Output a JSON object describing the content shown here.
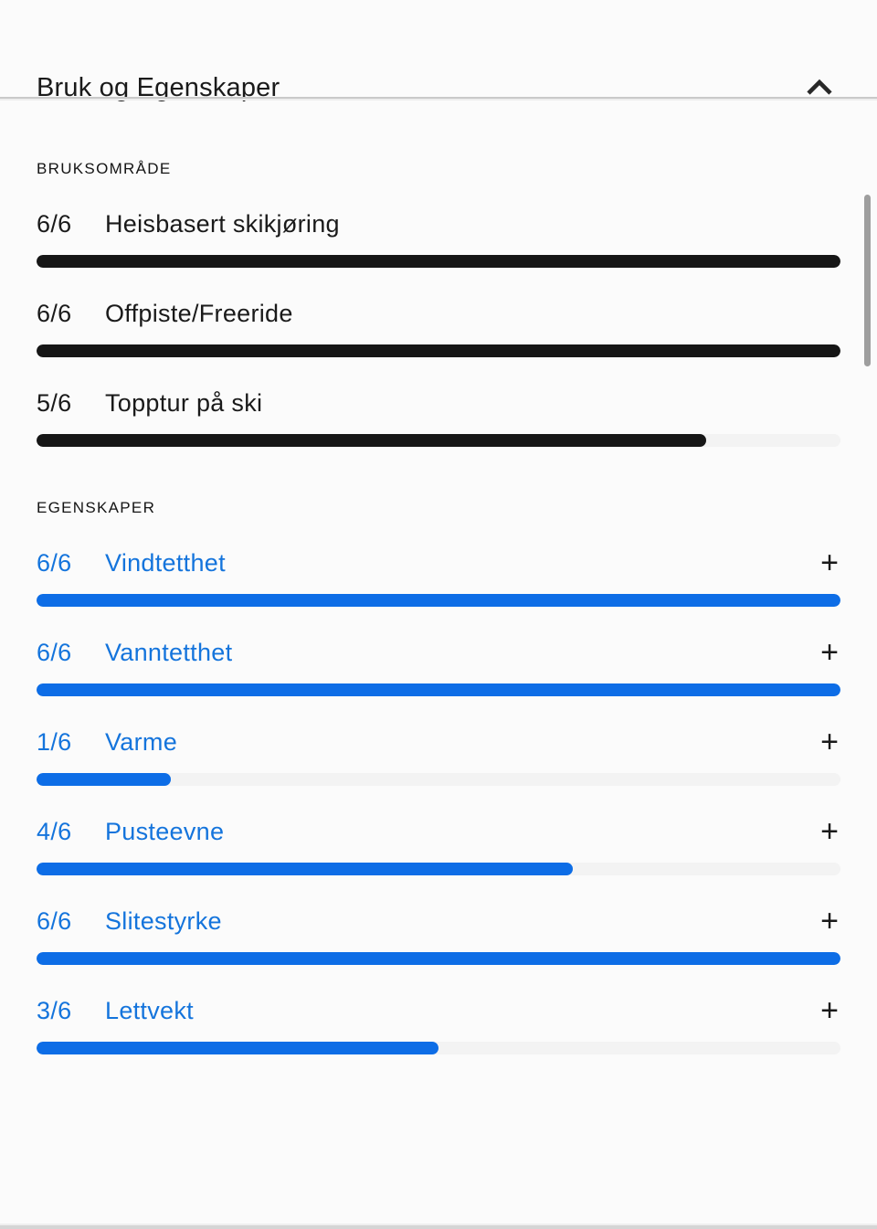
{
  "colors": {
    "background": "#fbfbfb",
    "usage_bar": "#161616",
    "property_bar": "#0d6de6",
    "property_text": "#1474dc",
    "track": "#f3f3f3",
    "divider": "#c9c9c9",
    "scrollbar": "#9e9e9e"
  },
  "panel": {
    "title": "Bruk og Egenskaper",
    "collapse_icon": "chevron-up"
  },
  "usage_section": {
    "heading": "BRUKSOMRÅDE",
    "max": 6,
    "items": [
      {
        "score_label": "6/6",
        "value": 6,
        "label": "Heisbasert skikjøring"
      },
      {
        "score_label": "6/6",
        "value": 6,
        "label": "Offpiste/Freeride"
      },
      {
        "score_label": "5/6",
        "value": 5,
        "label": "Topptur på ski"
      }
    ]
  },
  "properties_section": {
    "heading": "EGENSKAPER",
    "max": 6,
    "expand_icon": "+",
    "items": [
      {
        "score_label": "6/6",
        "value": 6,
        "label": "Vindtetthet"
      },
      {
        "score_label": "6/6",
        "value": 6,
        "label": "Vanntetthet"
      },
      {
        "score_label": "1/6",
        "value": 1,
        "label": "Varme"
      },
      {
        "score_label": "4/6",
        "value": 4,
        "label": "Pusteevne"
      },
      {
        "score_label": "6/6",
        "value": 6,
        "label": "Slitestyrke"
      },
      {
        "score_label": "3/6",
        "value": 3,
        "label": "Lettvekt"
      }
    ]
  }
}
